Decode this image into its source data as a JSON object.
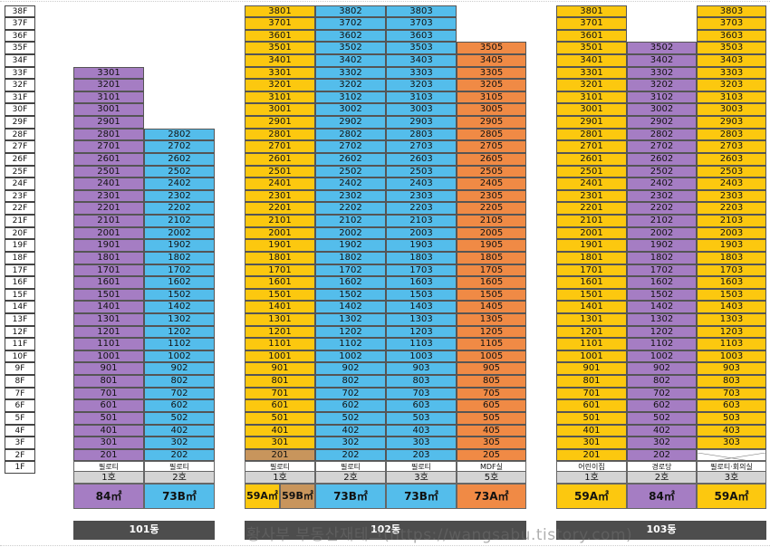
{
  "floors": [
    "38F",
    "37F",
    "36F",
    "35F",
    "34F",
    "33F",
    "32F",
    "31F",
    "30F",
    "29F",
    "28F",
    "27F",
    "26F",
    "25F",
    "24F",
    "23F",
    "22F",
    "21F",
    "20F",
    "19F",
    "18F",
    "17F",
    "16F",
    "15F",
    "14F",
    "13F",
    "12F",
    "11F",
    "10F",
    "9F",
    "8F",
    "7F",
    "6F",
    "5F",
    "4F",
    "3F",
    "2F",
    "1F"
  ],
  "colors": {
    "purple": "#a57dc3",
    "blue": "#54bdeb",
    "yellow": "#fcc80f",
    "orange": "#f08a45",
    "tan": "#c8955c",
    "building_bar": "#4d4d4d"
  },
  "columns": [
    {
      "key": "101-1",
      "unit": 1,
      "top": 33,
      "bottom": 2,
      "color": "purple",
      "empty_floors": [],
      "pilotis": "필로티",
      "ho": "1호"
    },
    {
      "key": "101-2",
      "unit": 2,
      "top": 28,
      "bottom": 2,
      "color": "blue",
      "empty_floors": [],
      "pilotis": "필로티",
      "ho": "2호"
    },
    {
      "key": "102-1",
      "unit": 1,
      "top": 38,
      "bottom": 2,
      "color": "yellow",
      "color_floor2": "tan",
      "empty_floors": [],
      "pilotis": "필로티",
      "ho": "1호"
    },
    {
      "key": "102-2",
      "unit": 2,
      "top": 38,
      "bottom": 2,
      "color": "blue",
      "empty_floors": [],
      "pilotis": "필로티",
      "ho": "2호"
    },
    {
      "key": "102-3",
      "unit": 3,
      "top": 38,
      "bottom": 2,
      "color": "blue",
      "empty_floors": [],
      "pilotis": "필로티",
      "ho": "3호"
    },
    {
      "key": "102-5",
      "unit": 5,
      "top": 35,
      "bottom": 2,
      "color": "orange",
      "empty_floors": [],
      "pilotis": "MDF실",
      "ho": "5호"
    },
    {
      "key": "103-1",
      "unit": 1,
      "top": 38,
      "bottom": 2,
      "color": "yellow",
      "empty_floors": [],
      "pilotis": "어린이집",
      "ho": "1호"
    },
    {
      "key": "103-2",
      "unit": 2,
      "top": 35,
      "bottom": 2,
      "color": "purple",
      "empty_floors": [],
      "pilotis": "경로당",
      "ho": "2호"
    },
    {
      "key": "103-3",
      "unit": 3,
      "top": 38,
      "bottom": 3,
      "color": "yellow",
      "empty_floors": [
        2
      ],
      "pilotis": "필로티·회의실",
      "ho": "3호"
    }
  ],
  "types": {
    "101-1": "84㎡",
    "101-2": "73B㎡",
    "102-1a": "59A㎡",
    "102-1b": "59B㎡",
    "102-2": "73B㎡",
    "102-3": "73B㎡",
    "102-5": "73A㎡",
    "103-1": "59A㎡",
    "103-2": "84㎡",
    "103-3": "59A㎡"
  },
  "buildings": {
    "b101": "101동",
    "b102": "102동",
    "b103": "103동"
  },
  "watermark": "황사부 부동산재테크(https://wangsabu.tistory.com)"
}
